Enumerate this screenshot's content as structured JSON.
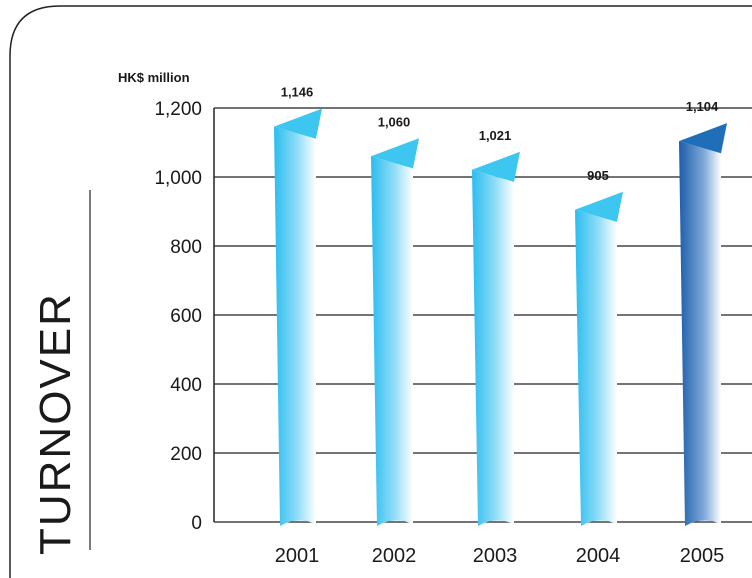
{
  "chart_data": {
    "type": "bar",
    "title": "TURNOVER",
    "ylabel": "HK$ million",
    "categories": [
      "2001",
      "2002",
      "2003",
      "2004",
      "2005"
    ],
    "values": [
      1146,
      1060,
      1021,
      905,
      1104
    ],
    "data_labels": [
      "1,146",
      "1,060",
      "1,021",
      "905",
      "1,104"
    ],
    "ylim": [
      0,
      1200
    ],
    "yticks": [
      0,
      200,
      400,
      600,
      800,
      1000,
      1200
    ],
    "ytick_labels": [
      "0",
      "200",
      "400",
      "600",
      "800",
      "1,000",
      "1,200"
    ],
    "grid": true,
    "colors": {
      "bar_light": "#3cc6f0",
      "bar_highlight": "#1f6fb8",
      "frame": "#222222"
    }
  }
}
